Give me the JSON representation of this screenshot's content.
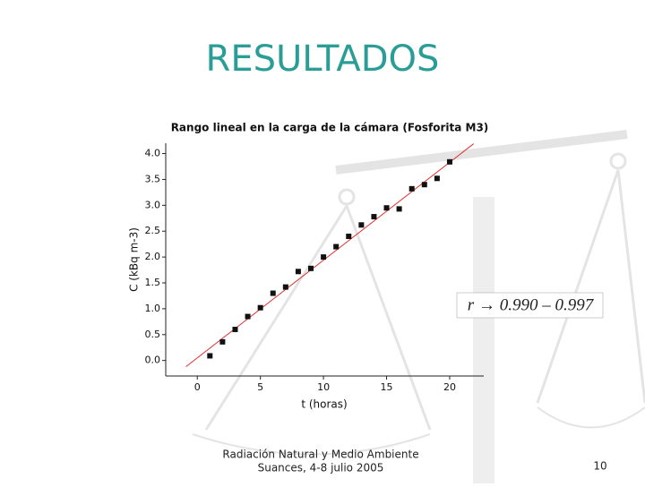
{
  "slide": {
    "title": "RESULTADOS",
    "footer_lines": [
      "Radiación Natural y Medio Ambiente",
      "Suances, 4-8 julio 2005"
    ],
    "page_number": "10"
  },
  "chart_data": {
    "type": "scatter",
    "title": "Rango lineal en la carga de la cámara (Fosforita M3)",
    "x_label": "t (horas)",
    "y_label": "C (kBq m-3)",
    "annotation": "r → 0.990 – 0.997",
    "x": [
      1,
      2,
      3,
      4,
      5,
      6,
      7,
      8,
      9,
      10,
      11,
      12,
      13,
      14,
      15,
      16,
      17,
      18,
      19,
      20
    ],
    "values": [
      0.09,
      0.36,
      0.6,
      0.85,
      1.02,
      1.3,
      1.42,
      1.72,
      1.78,
      2.0,
      2.2,
      2.4,
      2.62,
      2.78,
      2.95,
      2.93,
      3.32,
      3.4,
      3.52,
      3.84
    ],
    "color": "#111111",
    "fit_line": {
      "x": [
        -0.9,
        21.9
      ],
      "values": [
        -0.12,
        4.19
      ],
      "color": "#e03030"
    },
    "xlim": [
      -2.5,
      22.7
    ],
    "ylim": [
      -0.3,
      4.2
    ],
    "xticks": [
      0,
      5,
      10,
      15,
      20
    ],
    "yticks": [
      {
        "value": 0,
        "label": "0.0"
      },
      0.5,
      {
        "value": 1,
        "label": "1.0"
      },
      1.5,
      {
        "value": 2,
        "label": "2.0"
      },
      2.5,
      {
        "value": 3,
        "label": "3.0"
      },
      3.5,
      {
        "value": 4,
        "label": "4.0"
      }
    ]
  }
}
